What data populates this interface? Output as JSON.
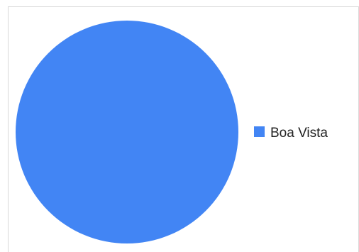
{
  "chart_data": {
    "type": "pie",
    "title": "",
    "slices": [
      {
        "label": "Boa Vista",
        "value": 100,
        "color": "#4285f4"
      }
    ],
    "legend": {
      "position": "right"
    }
  }
}
